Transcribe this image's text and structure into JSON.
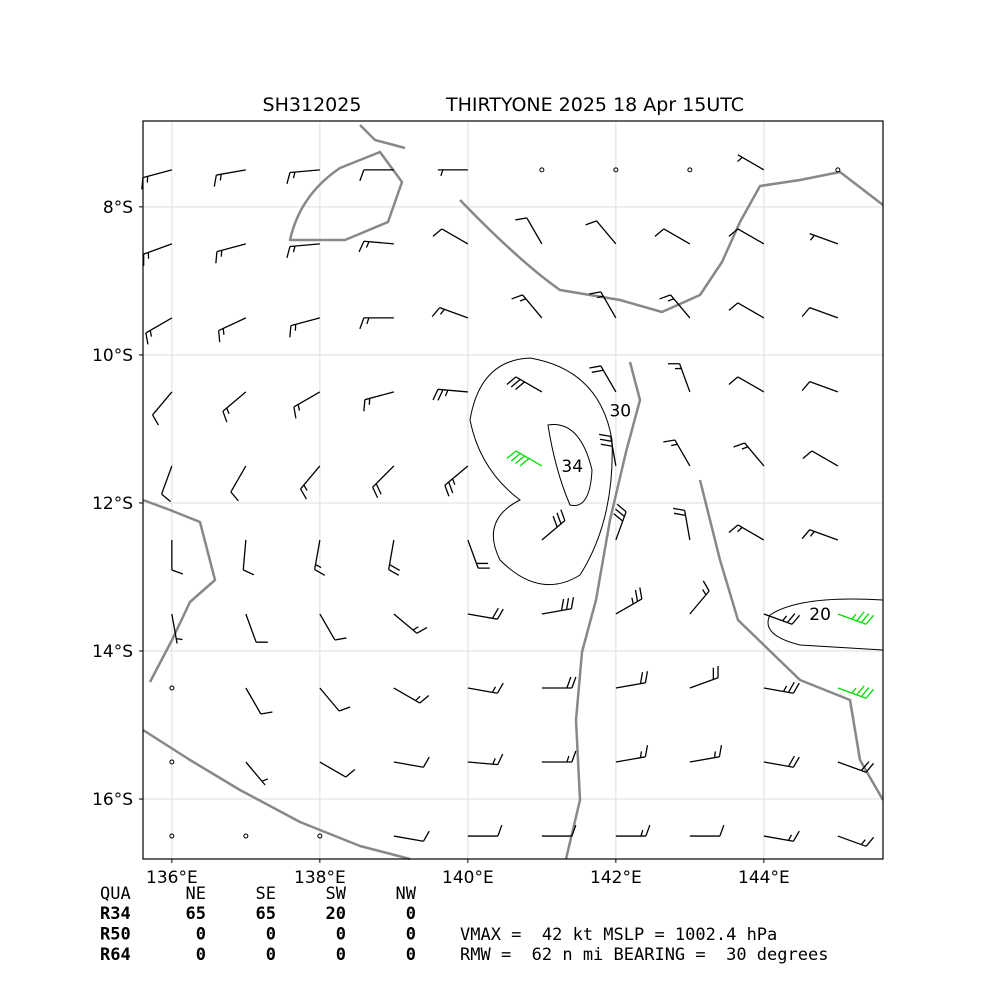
{
  "map": {
    "type": "wind_barbs",
    "title_left": "SH312025",
    "title_right": "THIRTYONE 2025 18 Apr 15UTC",
    "xlim": [
      135.61,
      145.61
    ],
    "ylim": [
      -16.81,
      -6.84
    ],
    "xticks": [
      {
        "value": 136,
        "label": "136°E"
      },
      {
        "value": 138,
        "label": "138°E"
      },
      {
        "value": 140,
        "label": "140°E"
      },
      {
        "value": 142,
        "label": "142°E"
      },
      {
        "value": 144,
        "label": "144°E"
      }
    ],
    "yticks": [
      {
        "value": -8,
        "label": "8°S"
      },
      {
        "value": -10,
        "label": "10°S"
      },
      {
        "value": -12,
        "label": "12°S"
      },
      {
        "value": -14,
        "label": "14°S"
      },
      {
        "value": -16,
        "label": "16°S"
      }
    ],
    "grid": true,
    "barbs": {
      "lons": [
        136,
        137,
        138,
        139,
        140,
        141,
        142,
        143,
        144,
        145
      ],
      "rows": [
        {
          "lat": -7.5,
          "dir": [
            255,
            260,
            265,
            270,
            270,
            0,
            0,
            0,
            300,
            0
          ],
          "spd": [
            15,
            15,
            15,
            10,
            5,
            0,
            0,
            0,
            5,
            0
          ]
        },
        {
          "lat": -8.5,
          "dir": [
            250,
            255,
            265,
            275,
            300,
            330,
            320,
            300,
            300,
            290
          ],
          "spd": [
            15,
            15,
            15,
            15,
            10,
            10,
            10,
            10,
            10,
            5
          ]
        },
        {
          "lat": -9.5,
          "dir": [
            240,
            245,
            255,
            270,
            290,
            320,
            330,
            320,
            300,
            290
          ],
          "spd": [
            15,
            15,
            15,
            15,
            15,
            15,
            15,
            15,
            10,
            10
          ]
        },
        {
          "lat": -10.5,
          "dir": [
            220,
            230,
            240,
            255,
            275,
            300,
            330,
            340,
            300,
            290
          ],
          "spd": [
            10,
            15,
            15,
            15,
            25,
            30,
            20,
            15,
            10,
            10
          ]
        },
        {
          "lat": -11.5,
          "dir": [
            200,
            210,
            220,
            225,
            230,
            300,
            350,
            330,
            320,
            300
          ],
          "spd": [
            10,
            10,
            15,
            20,
            25,
            40,
            30,
            15,
            15,
            10
          ]
        },
        {
          "lat": -12.5,
          "dir": [
            180,
            185,
            190,
            190,
            160,
            50,
            20,
            350,
            300,
            290
          ],
          "spd": [
            10,
            10,
            15,
            20,
            20,
            30,
            30,
            20,
            15,
            15
          ]
        },
        {
          "lat": -13.5,
          "dir": [
            170,
            160,
            150,
            130,
            100,
            80,
            60,
            40,
            110,
            110
          ],
          "spd": [
            5,
            10,
            10,
            15,
            20,
            30,
            25,
            15,
            25,
            35
          ]
        },
        {
          "lat": -14.5,
          "dir": [
            0,
            150,
            140,
            120,
            100,
            90,
            80,
            70,
            100,
            110
          ],
          "spd": [
            0,
            10,
            10,
            15,
            15,
            20,
            20,
            20,
            25,
            35
          ]
        },
        {
          "lat": -15.5,
          "dir": [
            0,
            140,
            120,
            100,
            95,
            90,
            80,
            80,
            100,
            110
          ],
          "spd": [
            0,
            5,
            10,
            10,
            15,
            15,
            15,
            15,
            20,
            20
          ]
        },
        {
          "lat": -16.5,
          "dir": [
            0,
            0,
            0,
            100,
            90,
            90,
            90,
            90,
            100,
            110
          ],
          "spd": [
            0,
            0,
            0,
            10,
            10,
            10,
            15,
            10,
            15,
            15
          ]
        }
      ],
      "colors": [
        {
          "min": 0,
          "color": "#000000"
        },
        {
          "min": 34,
          "color": "#00dd00"
        },
        {
          "min": 50,
          "color": "#ffaa00"
        }
      ]
    },
    "contour_labels": [
      {
        "text": "34",
        "lon": 141.41,
        "lat": -11.5
      },
      {
        "text": "30",
        "lon": 142.06,
        "lat": -10.75
      },
      {
        "text": "20",
        "lon": 144.76,
        "lat": -13.5
      }
    ]
  },
  "table": {
    "header": [
      "QUA",
      "NE",
      "SE",
      "SW",
      "NW"
    ],
    "rows": [
      [
        "R34",
        "65",
        "65",
        "20",
        "0"
      ],
      [
        "R50",
        "0",
        "0",
        "0",
        "0"
      ],
      [
        "R64",
        "0",
        "0",
        "0",
        "0"
      ]
    ]
  },
  "summary": [
    "VMAX =  42 kt MSLP = 1002.4 hPa",
    "RMW =  62 n mi BEARING =  30 degrees"
  ]
}
